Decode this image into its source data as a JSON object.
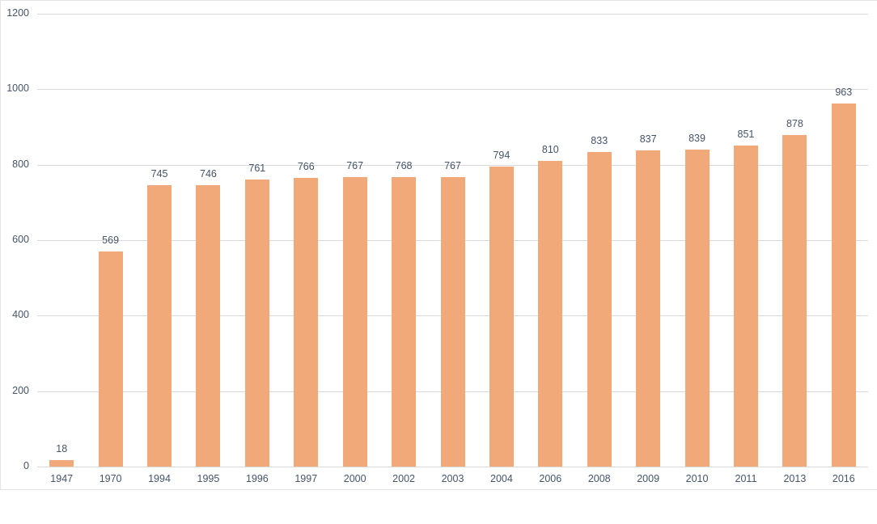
{
  "chart_data": {
    "type": "bar",
    "categories": [
      "1947",
      "1970",
      "1994",
      "1995",
      "1996",
      "1997",
      "2000",
      "2002",
      "2003",
      "2004",
      "2006",
      "2008",
      "2009",
      "2010",
      "2011",
      "2013",
      "2016"
    ],
    "values": [
      18,
      569,
      745,
      746,
      761,
      766,
      767,
      768,
      767,
      794,
      810,
      833,
      837,
      839,
      851,
      878,
      963
    ],
    "title": "",
    "xlabel": "",
    "ylabel": "",
    "ylim": [
      0,
      1200
    ],
    "yticks": [
      0,
      200,
      400,
      600,
      800,
      1000,
      1200
    ],
    "grid": true,
    "legend": false,
    "data_labels": true,
    "bar_color": "#F2A97A",
    "text_color": "#44546A",
    "gridline_color": "#D9D9D9"
  }
}
